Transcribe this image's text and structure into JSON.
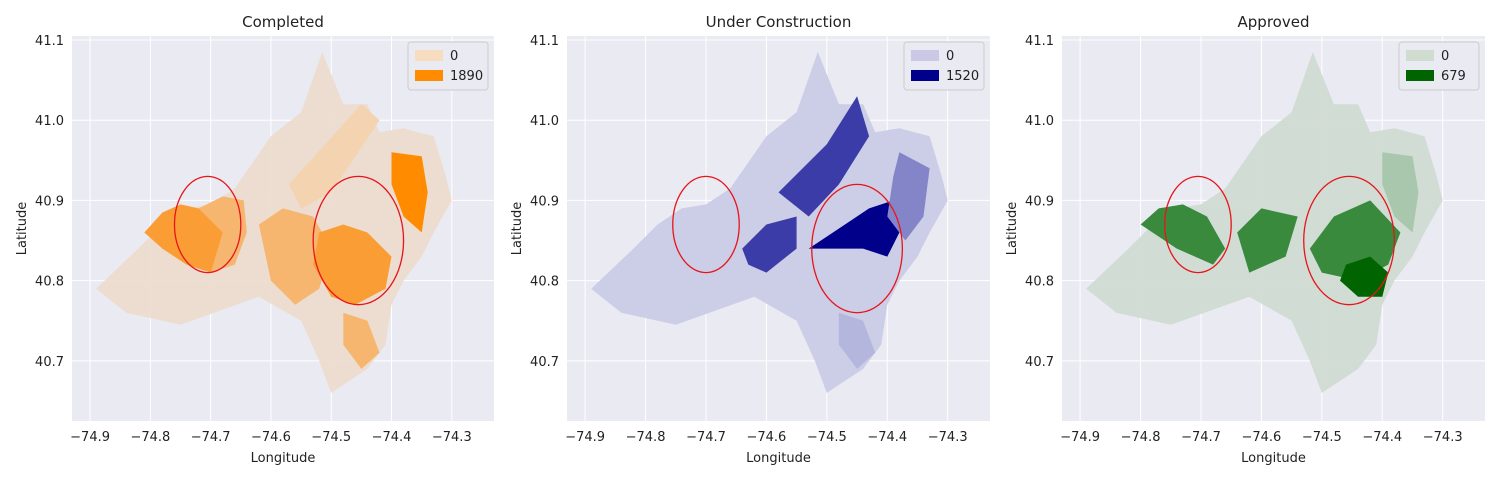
{
  "chart_data": [
    {
      "type": "choropleth",
      "title": "Completed",
      "xlabel": "Longitude",
      "ylabel": "Latitude",
      "xlim": [
        -74.93,
        -74.23
      ],
      "ylim": [
        40.625,
        41.105
      ],
      "xticks": [
        -74.9,
        -74.8,
        -74.7,
        -74.6,
        -74.5,
        -74.4,
        -74.3
      ],
      "yticks": [
        40.7,
        40.8,
        40.9,
        41.0,
        41.1
      ],
      "xtick_labels": [
        "−74.9",
        "−74.8",
        "−74.7",
        "−74.6",
        "−74.5",
        "−74.4",
        "−74.3"
      ],
      "ytick_labels": [
        "40.7",
        "40.8",
        "40.9",
        "41.0",
        "41.1"
      ],
      "legend": [
        {
          "label": "0",
          "color": "#f7dcc0"
        },
        {
          "label": "1890",
          "color": "#ff8c00"
        }
      ],
      "legend_position": "top-right",
      "grid": true,
      "base_color": "#ecdccd",
      "palette": {
        "light": "#f3d3b0",
        "mid": "#f6b66f",
        "strong": "#fb9d35",
        "max": "#ff8c00"
      },
      "circles": [
        {
          "lon": -74.705,
          "lat": 40.87,
          "rx_deg": 0.055,
          "ry_deg": 0.06
        },
        {
          "lon": -74.455,
          "lat": 40.85,
          "rx_deg": 0.075,
          "ry_deg": 0.08
        }
      ],
      "circle_color": "#e8141a"
    },
    {
      "type": "choropleth",
      "title": "Under Construction",
      "xlabel": "Longitude",
      "ylabel": "Latitude",
      "xlim": [
        -74.93,
        -74.23
      ],
      "ylim": [
        40.625,
        41.105
      ],
      "xticks": [
        -74.9,
        -74.8,
        -74.7,
        -74.6,
        -74.5,
        -74.4,
        -74.3
      ],
      "yticks": [
        40.7,
        40.8,
        40.9,
        41.0,
        41.1
      ],
      "xtick_labels": [
        "−74.9",
        "−74.8",
        "−74.7",
        "−74.6",
        "−74.5",
        "−74.4",
        "−74.3"
      ],
      "ytick_labels": [
        "40.7",
        "40.8",
        "40.9",
        "41.0",
        "41.1"
      ],
      "legend": [
        {
          "label": "0",
          "color": "#c9c9e6"
        },
        {
          "label": "1520",
          "color": "#00008b"
        }
      ],
      "legend_position": "top-right",
      "grid": true,
      "base_color": "#cacbe5",
      "palette": {
        "light": "#b5b6dd",
        "mid": "#8485c8",
        "strong": "#3c3ca8",
        "max": "#00008b"
      },
      "circles": [
        {
          "lon": -74.7,
          "lat": 40.87,
          "rx_deg": 0.055,
          "ry_deg": 0.06
        },
        {
          "lon": -74.45,
          "lat": 40.84,
          "rx_deg": 0.075,
          "ry_deg": 0.08
        }
      ],
      "circle_color": "#e8141a"
    },
    {
      "type": "choropleth",
      "title": "Approved",
      "xlabel": "Longitude",
      "ylabel": "Latitude",
      "xlim": [
        -74.93,
        -74.23
      ],
      "ylim": [
        40.625,
        41.105
      ],
      "xticks": [
        -74.9,
        -74.8,
        -74.7,
        -74.6,
        -74.5,
        -74.4,
        -74.3
      ],
      "yticks": [
        40.7,
        40.8,
        40.9,
        41.0,
        41.1
      ],
      "xtick_labels": [
        "−74.9",
        "−74.8",
        "−74.7",
        "−74.6",
        "−74.5",
        "−74.4",
        "−74.3"
      ],
      "ytick_labels": [
        "40.7",
        "40.8",
        "40.9",
        "41.0",
        "41.1"
      ],
      "legend": [
        {
          "label": "0",
          "color": "#cfdccf"
        },
        {
          "label": "679",
          "color": "#006400"
        }
      ],
      "legend_position": "top-right",
      "grid": true,
      "base_color": "#d0dbd2",
      "palette": {
        "light": "#a9c7ad",
        "mid": "#8fb895",
        "strong": "#3a8a3e",
        "max": "#006400"
      },
      "circles": [
        {
          "lon": -74.705,
          "lat": 40.87,
          "rx_deg": 0.055,
          "ry_deg": 0.06
        },
        {
          "lon": -74.455,
          "lat": 40.85,
          "rx_deg": 0.075,
          "ry_deg": 0.08
        }
      ],
      "circle_color": "#e8141a"
    }
  ]
}
